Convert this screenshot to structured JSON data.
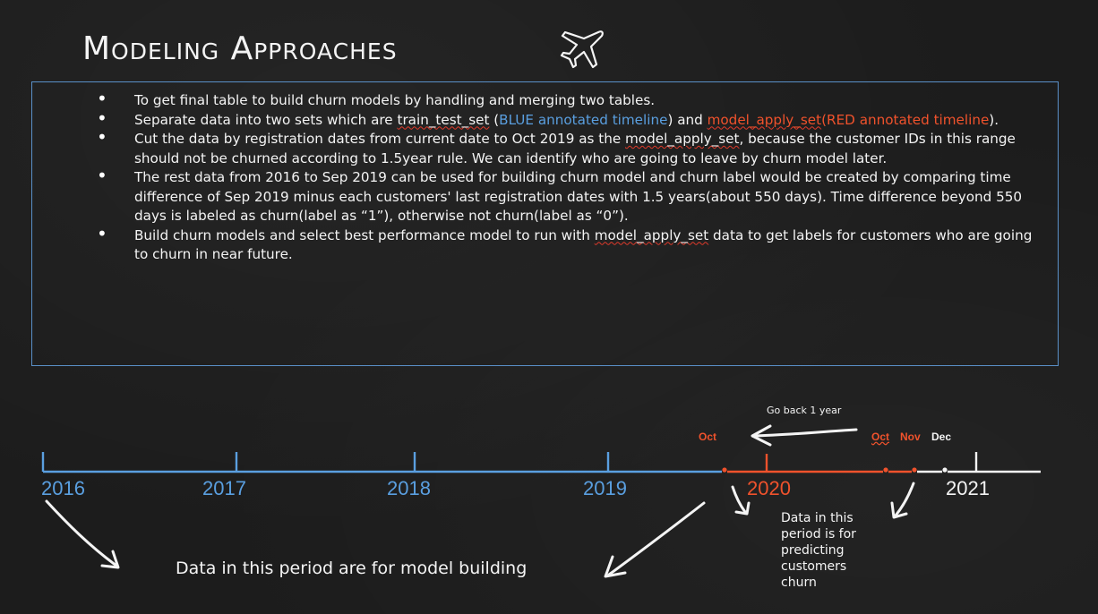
{
  "title": "Modeling Approaches",
  "bullets": {
    "b1": "To get final table to build churn models by handling and merging two tables.",
    "b2_pre": "Separate data into two sets which are ",
    "b2_train": "train_test_set",
    "b2_mid1": " (",
    "b2_blue": "BLUE annotated timeline",
    "b2_mid2": ") and ",
    "b2_apply": "model_apply_set",
    "b2_red": "(RED annotated timeline",
    "b2_end": ").",
    "b3_pre": "Cut the data by registration dates from current date to Oct 2019 as the ",
    "b3_apply": "model_apply_set",
    "b3_post": ", because the customer IDs in this range should not be churned according to 1.5year rule. We can identify who are going to leave by churn model later.",
    "b4": "The rest data from 2016 to Sep 2019 can be used for building churn  model and churn label would be created by comparing time difference of Sep 2019 minus each customers' last registration dates with 1.5 years(about 550 days). Time difference beyond 550 days is labeled as churn(label as “1”), otherwise not churn(label as “0”).",
    "b5_pre": "Build churn models and select best performance model to run with ",
    "b5_apply": "model_apply_set",
    "b5_post": " data to get labels for customers who are going to churn in near future."
  },
  "timeline": {
    "years": [
      "2016",
      "2017",
      "2018",
      "2019",
      "2020",
      "2021"
    ],
    "months": {
      "oct1": "Oct",
      "oct2": "Oct",
      "nov": "Nov",
      "dec": "Dec"
    },
    "go_back": "Go back 1 year",
    "note_model": "Data in this period are for model building",
    "note_predict": [
      "Data in this",
      "period is for",
      "predicting",
      "customers",
      "churn"
    ]
  },
  "colors": {
    "blue": "#5a9fe0",
    "red": "#f0522c",
    "chalk": "#f4f4f4",
    "border": "#5a90c8"
  },
  "icons": [
    "airplane-icon",
    "chalk-arrow-icon"
  ]
}
